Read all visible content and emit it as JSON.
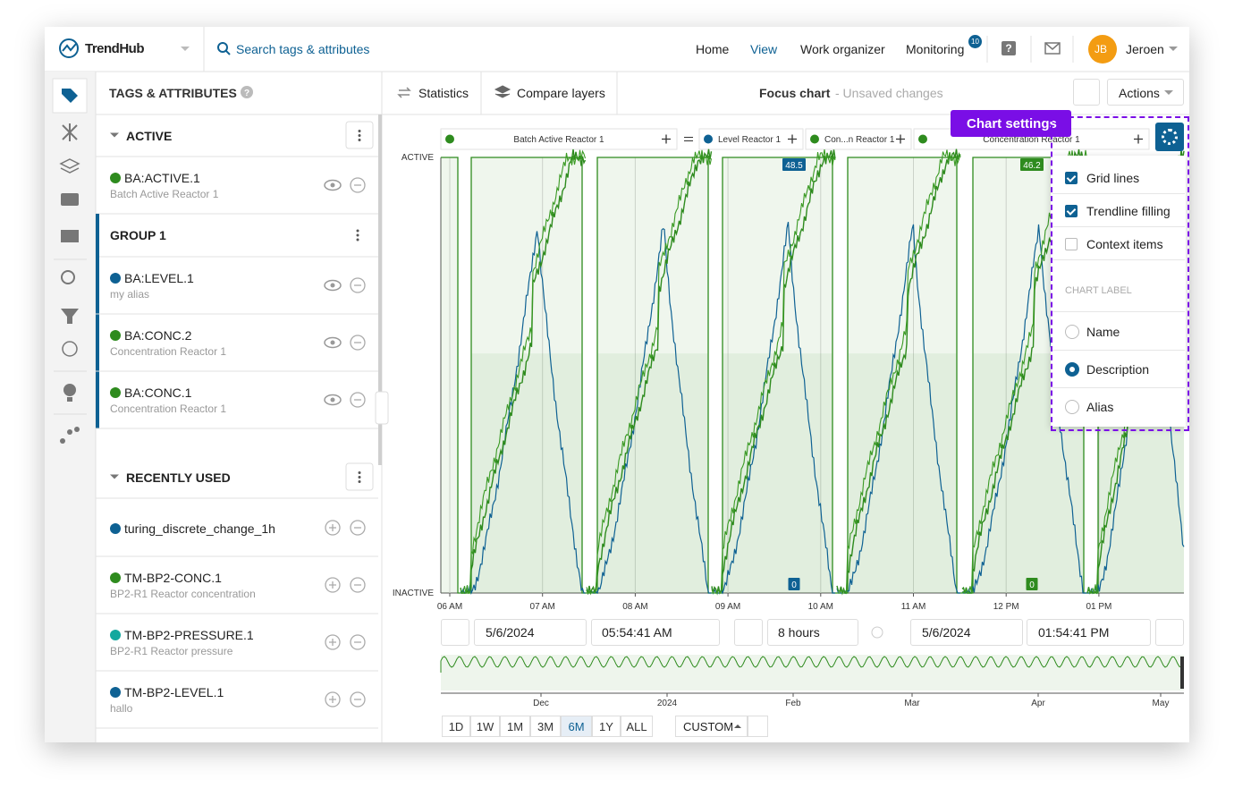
{
  "header": {
    "brand": "TrendHub",
    "search": "Search tags & attributes",
    "nav": [
      {
        "label": "Home",
        "active": false
      },
      {
        "label": "View",
        "active": true
      },
      {
        "label": "Work organizer",
        "active": false
      },
      {
        "label": "Monitoring",
        "active": false
      }
    ],
    "monitoring_badge": "10",
    "user_initials": "JB",
    "user_name": "Jeroen"
  },
  "sidebar": {
    "title": "TAGS & ATTRIBUTES",
    "sections": [
      {
        "title": "ACTIVE",
        "items": [
          {
            "tag": "BA:ACTIVE.1",
            "description": "Batch Active Reactor 1",
            "color": "#2e8b1e"
          }
        ]
      },
      {
        "title": "GROUP 1",
        "items": [
          {
            "tag": "BA:LEVEL.1",
            "description": "my alias",
            "color": "#0e6193"
          },
          {
            "tag": "BA:CONC.2",
            "description": "Concentration Reactor 1",
            "color": "#2e8b1e"
          },
          {
            "tag": "BA:CONC.1",
            "description": "Concentration Reactor 1",
            "color": "#2e8b1e"
          }
        ]
      },
      {
        "title": "RECENTLY USED",
        "items": [
          {
            "tag": "turing_discrete_change_1h",
            "color": "#0e6193"
          },
          {
            "tag": "TM-BP2-CONC.1",
            "description": "BP2-R1 Reactor concentration",
            "color": "#2e8b1e"
          },
          {
            "tag": "TM-BP2-PRESSURE.1",
            "description": "BP2-R1 Reactor pressure",
            "color": "#13a89e"
          },
          {
            "tag": "TM-BP2-LEVEL.1",
            "description": "hallo",
            "color": "#0e6193"
          }
        ]
      }
    ]
  },
  "toolbar": {
    "statistics": "Statistics",
    "compare_layers": "Compare layers",
    "chart_title": "Focus chart",
    "chart_status": "- Unsaved changes",
    "actions": "Actions"
  },
  "chart": {
    "legend": [
      {
        "label": "Batch Active Reactor 1",
        "color": "#2e8b1e"
      },
      {
        "label": "Level Reactor 1",
        "color": "#0e6193"
      },
      {
        "label": "Con...n Reactor 1",
        "color": "#2e8b1e"
      },
      {
        "label": "Concentration Reactor 1",
        "color": "#2e8b1e"
      }
    ],
    "y_top_label": "ACTIVE",
    "y_bottom_label": "INACTIVE",
    "x_ticks": [
      "06 AM",
      "07 AM",
      "08 AM",
      "09 AM",
      "10 AM",
      "11 AM",
      "12 PM",
      "01 PM"
    ],
    "value_badges": [
      {
        "label": "48.5",
        "color": "#0e6193"
      },
      {
        "label": "0",
        "color": "#0e6193"
      },
      {
        "label": "46.2",
        "color": "#2e8b1e"
      },
      {
        "label": "0",
        "color": "#2e8b1e"
      }
    ],
    "grid": true,
    "fill": true
  },
  "settings": {
    "title": "Chart settings",
    "options": [
      {
        "label": "Grid lines",
        "checked": true
      },
      {
        "label": "Trendline filling",
        "checked": true
      },
      {
        "label": "Context items",
        "checked": false
      }
    ],
    "label_heading": "CHART LABEL",
    "label_options": [
      {
        "label": "Name",
        "selected": false
      },
      {
        "label": "Description",
        "selected": true
      },
      {
        "label": "Alias",
        "selected": false
      }
    ]
  },
  "time": {
    "start_date": "5/6/2024",
    "start_time": "05:54:41 AM",
    "duration": "8 hours",
    "end_date": "5/6/2024",
    "end_time": "01:54:41 PM",
    "overview_labels": [
      "Dec",
      "2024",
      "Feb",
      "Mar",
      "Apr",
      "May"
    ],
    "ranges": [
      {
        "label": "1D",
        "active": false
      },
      {
        "label": "1W",
        "active": false
      },
      {
        "label": "1M",
        "active": false
      },
      {
        "label": "3M",
        "active": false
      },
      {
        "label": "6M",
        "active": true
      },
      {
        "label": "1Y",
        "active": false
      },
      {
        "label": "ALL",
        "active": false
      }
    ],
    "custom": "CUSTOM"
  }
}
